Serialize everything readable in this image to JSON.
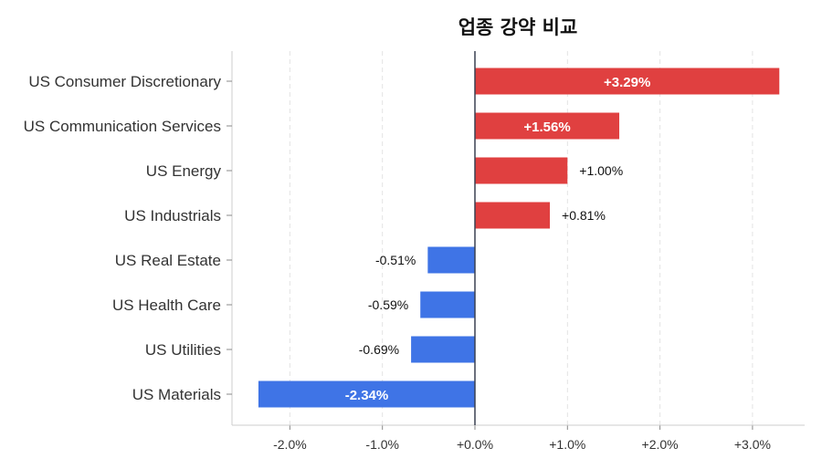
{
  "chart_data": {
    "type": "bar",
    "orientation": "horizontal",
    "title": "업종 강약 비교",
    "categories": [
      "US Consumer Discretionary",
      "US Communication Services",
      "US Energy",
      "US Industrials",
      "US Real Estate",
      "US Health Care",
      "US Utilities",
      "US Materials"
    ],
    "values": [
      3.29,
      1.56,
      1.0,
      0.81,
      -0.51,
      -0.59,
      -0.69,
      -2.34
    ],
    "value_labels": [
      "+3.29%",
      "+1.56%",
      "+1.00%",
      "+0.81%",
      "-0.51%",
      "-0.59%",
      "-0.69%",
      "-2.34%"
    ],
    "xlim": [
      -2.65,
      3.55
    ],
    "xticks": [
      -2,
      -1,
      0,
      1,
      2,
      3
    ],
    "xtick_labels": [
      "-2.0%",
      "-1.0%",
      "+0.0%",
      "+1.0%",
      "+2.0%",
      "+3.0%"
    ],
    "xlabel": "",
    "ylabel": "",
    "grid": "vertical dashed",
    "colors": {
      "positive": "#e04040",
      "negative": "#3f74e6"
    }
  }
}
